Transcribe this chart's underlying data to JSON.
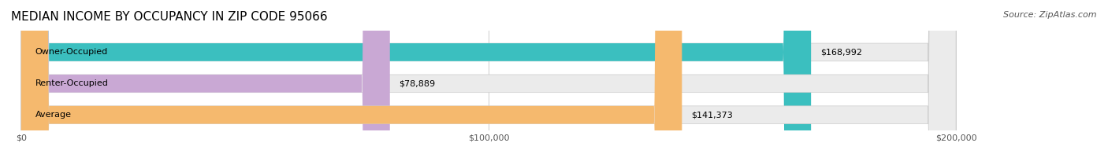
{
  "title": "MEDIAN INCOME BY OCCUPANCY IN ZIP CODE 95066",
  "source": "Source: ZipAtlas.com",
  "categories": [
    "Owner-Occupied",
    "Renter-Occupied",
    "Average"
  ],
  "values": [
    168992,
    78889,
    141373
  ],
  "labels": [
    "$168,992",
    "$78,889",
    "$141,373"
  ],
  "bar_colors": [
    "#3bbfbf",
    "#c9a8d4",
    "#f5b96e"
  ],
  "bar_bg_color": "#f0f0f0",
  "background_color": "#ffffff",
  "xmax": 200000,
  "xticks": [
    0,
    100000,
    200000
  ],
  "xticklabels": [
    "$0",
    "$100,000",
    "$200,000"
  ],
  "title_fontsize": 11,
  "source_fontsize": 8,
  "label_fontsize": 8,
  "cat_fontsize": 8
}
